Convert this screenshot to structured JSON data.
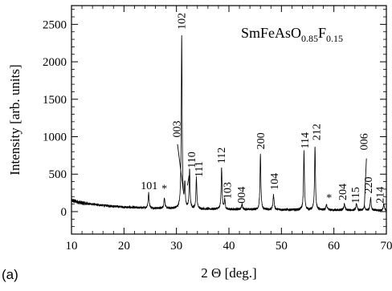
{
  "chart_data": {
    "type": "line",
    "xlabel": "2 Θ [deg.]",
    "ylabel": "Intensity [arb. units]",
    "xlim": [
      10,
      70
    ],
    "ylim": [
      -300,
      2750
    ],
    "xticks": [
      10,
      20,
      30,
      40,
      50,
      60,
      70
    ],
    "yticks": [
      0,
      500,
      1000,
      1500,
      2000,
      2500
    ],
    "x_minor_step": 2,
    "y_minor_step": 100,
    "sample_title": {
      "parts": [
        {
          "text": "SmFeAsO",
          "sub": false
        },
        {
          "text": "0.85",
          "sub": true
        },
        {
          "text": "F",
          "sub": false
        },
        {
          "text": "0.15",
          "sub": true
        }
      ]
    },
    "panel_label": "(a)",
    "baseline": [
      [
        10,
        150
      ],
      [
        12,
        115
      ],
      [
        15,
        90
      ],
      [
        20,
        60
      ],
      [
        25,
        45
      ],
      [
        30,
        40
      ],
      [
        40,
        30
      ],
      [
        50,
        25
      ],
      [
        60,
        20
      ],
      [
        70,
        15
      ]
    ],
    "peaks": [
      {
        "x": 24.7,
        "y": 200,
        "w": 0.12
      },
      {
        "x": 27.7,
        "y": 140,
        "w": 0.12
      },
      {
        "x": 31.0,
        "y": 2320,
        "w": 0.1
      },
      {
        "x": 31.6,
        "y": 310,
        "w": 0.1
      },
      {
        "x": 32.5,
        "y": 520,
        "w": 0.1
      },
      {
        "x": 33.8,
        "y": 420,
        "w": 0.1
      },
      {
        "x": 38.6,
        "y": 560,
        "w": 0.1
      },
      {
        "x": 39.2,
        "y": 130,
        "w": 0.1
      },
      {
        "x": 42.5,
        "y": 70,
        "w": 0.12
      },
      {
        "x": 46.0,
        "y": 740,
        "w": 0.1
      },
      {
        "x": 48.5,
        "y": 200,
        "w": 0.12
      },
      {
        "x": 54.3,
        "y": 780,
        "w": 0.1
      },
      {
        "x": 56.4,
        "y": 850,
        "w": 0.1
      },
      {
        "x": 58.6,
        "y": 70,
        "w": 0.12
      },
      {
        "x": 62.0,
        "y": 90,
        "w": 0.12
      },
      {
        "x": 64.3,
        "y": 90,
        "w": 0.12
      },
      {
        "x": 65.8,
        "y": 60,
        "w": 0.12
      },
      {
        "x": 67.0,
        "y": 170,
        "w": 0.12
      },
      {
        "x": 69.5,
        "y": 80,
        "w": 0.12
      }
    ],
    "annotations": [
      {
        "text": "101",
        "x": 24.8,
        "y": 300,
        "rotate": false
      },
      {
        "text": "*",
        "x": 27.7,
        "y": 260,
        "rotate": false
      },
      {
        "text": "102",
        "x": 30.9,
        "y": 2430,
        "rotate": true
      },
      {
        "text": "003",
        "x": 30.0,
        "y": 990,
        "rotate": true
      },
      {
        "text": "110",
        "x": 32.8,
        "y": 580,
        "rotate": true
      },
      {
        "text": "111",
        "x": 34.2,
        "y": 460,
        "rotate": true
      },
      {
        "text": "112",
        "x": 38.5,
        "y": 640,
        "rotate": true
      },
      {
        "text": "103",
        "x": 39.6,
        "y": 170,
        "rotate": true
      },
      {
        "text": "004",
        "x": 42.3,
        "y": 110,
        "rotate": true
      },
      {
        "text": "200",
        "x": 46.0,
        "y": 830,
        "rotate": true
      },
      {
        "text": "104",
        "x": 48.6,
        "y": 290,
        "rotate": true
      },
      {
        "text": "114",
        "x": 54.4,
        "y": 840,
        "rotate": true
      },
      {
        "text": "212",
        "x": 56.6,
        "y": 950,
        "rotate": true
      },
      {
        "text": "*",
        "x": 59.1,
        "y": 140,
        "rotate": false
      },
      {
        "text": "204",
        "x": 61.6,
        "y": 150,
        "rotate": true
      },
      {
        "text": "115",
        "x": 64.0,
        "y": 110,
        "rotate": true
      },
      {
        "text": "006",
        "x": 65.6,
        "y": 820,
        "rotate": true
      },
      {
        "text": "220",
        "x": 66.5,
        "y": 240,
        "rotate": true
      },
      {
        "text": "214",
        "x": 68.7,
        "y": 110,
        "rotate": true
      }
    ],
    "pointers": [
      {
        "from": [
          30.2,
          900
        ],
        "to": [
          31.3,
          280
        ]
      },
      {
        "from": [
          66.2,
          710
        ],
        "to": [
          65.8,
          70
        ]
      },
      {
        "from": [
          32.4,
          480
        ],
        "to": [
          32.1,
          350
        ]
      }
    ]
  }
}
